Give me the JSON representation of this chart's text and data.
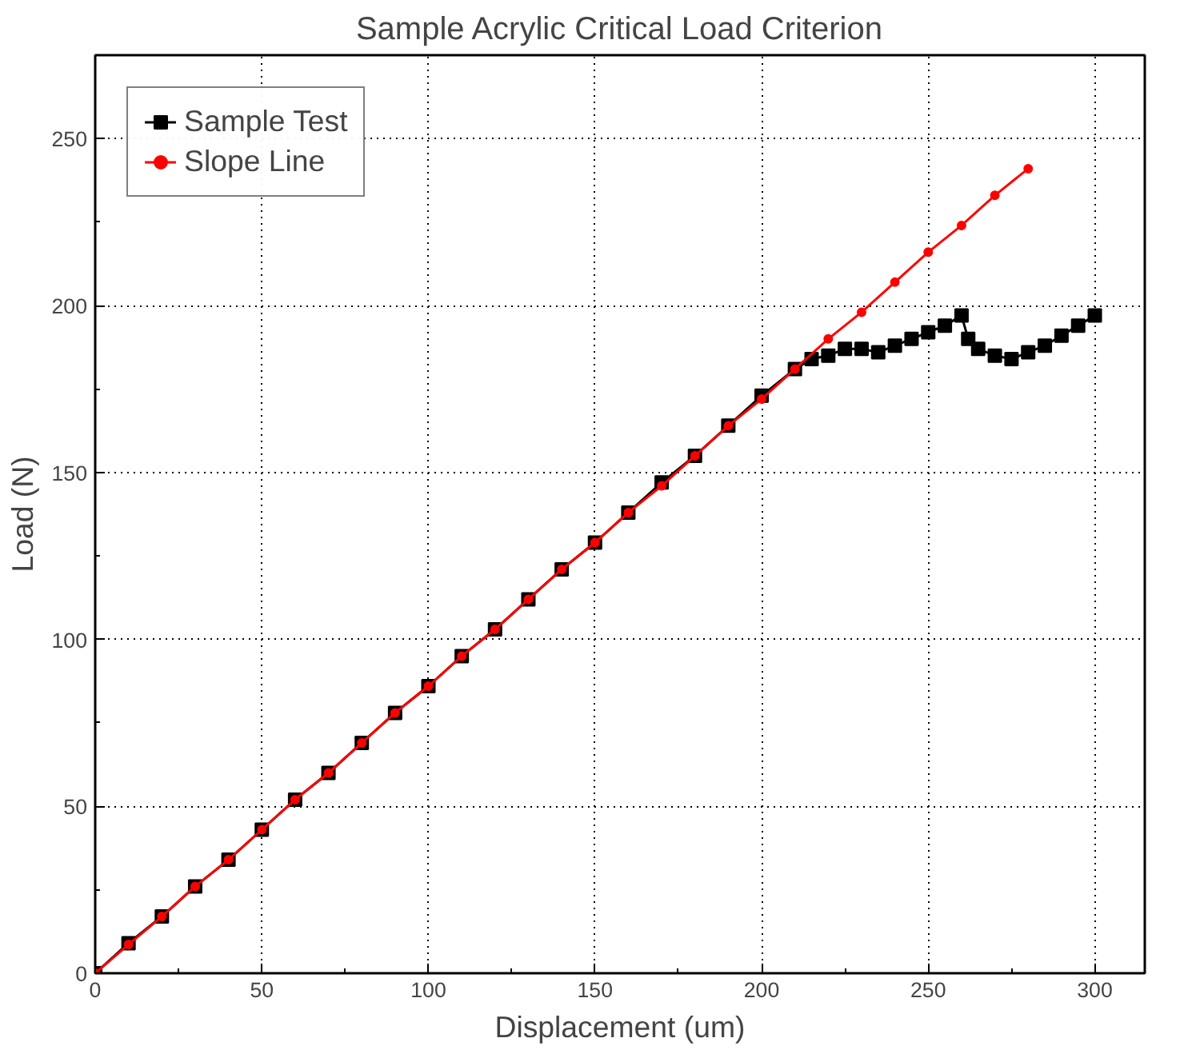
{
  "chart_data": {
    "type": "line",
    "title": "Sample Acrylic Critical Load Criterion",
    "xlabel": "Displacement (um)",
    "ylabel": "Load (N)",
    "xlim": [
      0,
      315
    ],
    "ylim": [
      0,
      275
    ],
    "xticks": [
      0,
      50,
      100,
      150,
      200,
      250,
      300
    ],
    "yticks": [
      0,
      50,
      100,
      150,
      200,
      250
    ],
    "grid": true,
    "legend": "top left",
    "line_style": "solid",
    "series": [
      {
        "name": "Sample Test",
        "color": "#000000",
        "marker": "square",
        "x": [
          0,
          10,
          20,
          30,
          40,
          50,
          60,
          70,
          80,
          90,
          100,
          110,
          120,
          130,
          140,
          150,
          160,
          170,
          180,
          190,
          200,
          210,
          215,
          220,
          225,
          230,
          235,
          240,
          245,
          250,
          255,
          260,
          262,
          265,
          270,
          275,
          280,
          285,
          290,
          295,
          300
        ],
        "values": [
          0,
          9,
          17,
          26,
          34,
          43,
          52,
          60,
          69,
          78,
          86,
          95,
          103,
          112,
          121,
          129,
          138,
          147,
          155,
          164,
          173,
          181,
          184,
          185,
          187,
          187,
          186,
          188,
          190,
          192,
          194,
          197,
          190,
          187,
          185,
          184,
          186,
          188,
          191,
          194,
          197
        ]
      },
      {
        "name": "Slope Line",
        "color": "#ff0000",
        "marker": "circle",
        "x": [
          0,
          10,
          20,
          30,
          40,
          50,
          60,
          70,
          80,
          90,
          100,
          110,
          120,
          130,
          140,
          150,
          160,
          170,
          180,
          190,
          200,
          210,
          220,
          230,
          240,
          250,
          260,
          270,
          280
        ],
        "values": [
          0,
          8.6,
          17,
          26,
          34,
          43,
          52,
          60,
          69,
          78,
          86,
          95,
          103,
          112,
          121,
          129,
          138,
          146,
          155,
          164,
          172,
          181,
          190,
          198,
          207,
          216,
          224,
          233,
          241
        ]
      }
    ]
  }
}
